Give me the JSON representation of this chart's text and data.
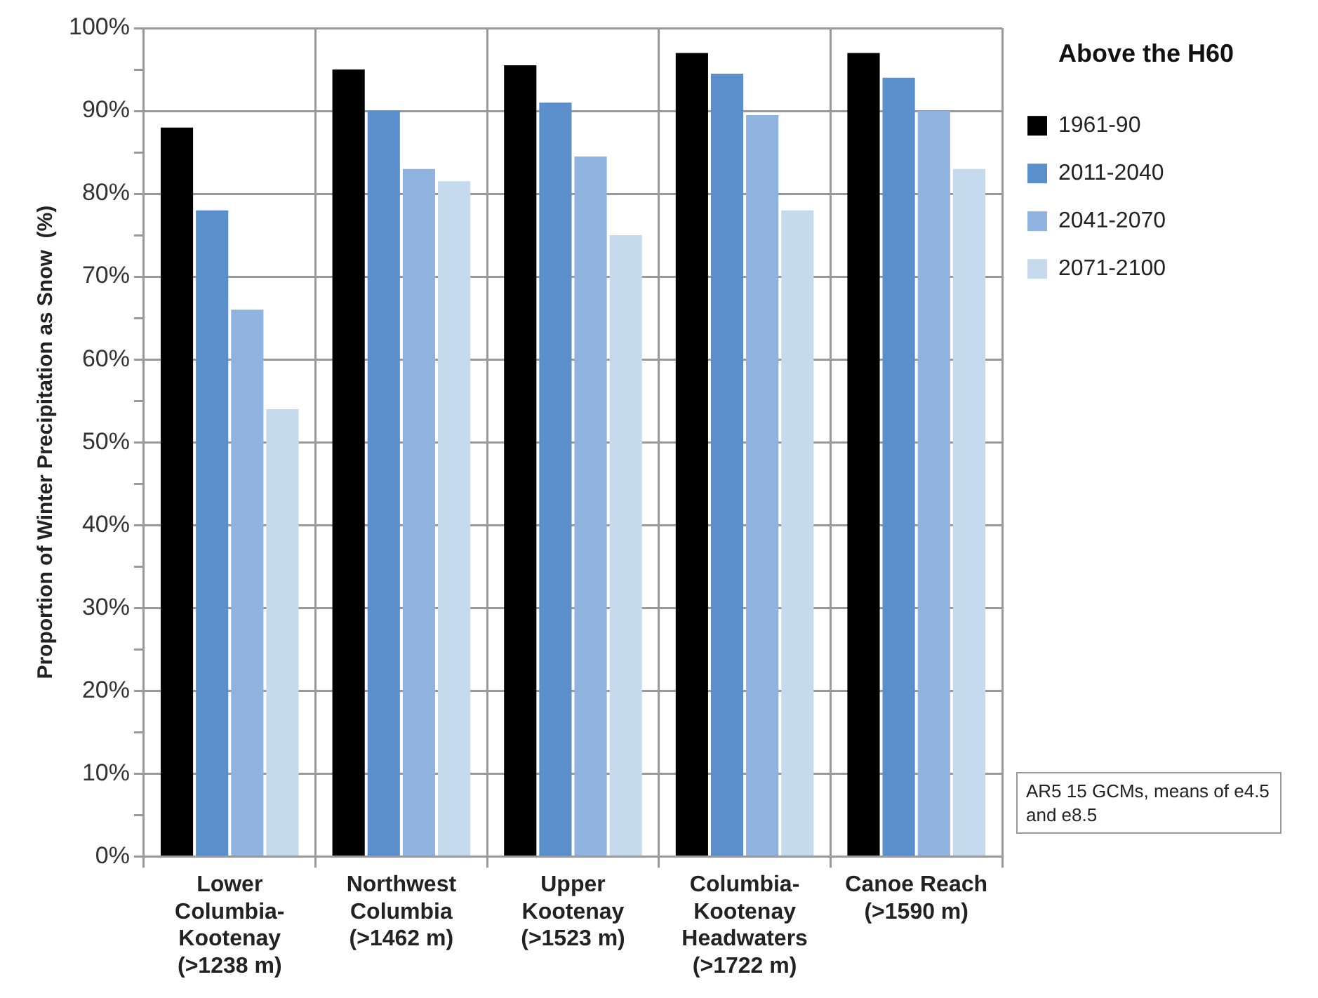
{
  "chart_data": {
    "type": "bar",
    "ylabel": "Proportion of Winter Precipitation as Snow  (%)",
    "legend_title": "Above the H60",
    "categories": [
      "Lower\nColumbia-\nKootenay\n(>1238 m)",
      "Northwest\nColumbia\n(>1462 m)",
      "Upper\nKootenay\n(>1523 m)",
      "Columbia-\nKootenay\nHeadwaters\n(>1722 m)",
      "Canoe Reach\n(>1590 m)"
    ],
    "series": [
      {
        "name": "1961-90",
        "color": "#000000",
        "values": [
          88,
          95,
          95.5,
          97,
          97
        ]
      },
      {
        "name": "2011-2040",
        "color": "#5a8fcc",
        "values": [
          78,
          90,
          91,
          94.5,
          94
        ]
      },
      {
        "name": "2041-2070",
        "color": "#8fb3de",
        "values": [
          66,
          83,
          84.5,
          89.5,
          90
        ]
      },
      {
        "name": "2071-2100",
        "color": "#c6daee",
        "values": [
          54,
          81.5,
          75,
          78,
          83
        ]
      }
    ],
    "ylim": [
      0,
      100
    ],
    "yticks": [
      {
        "value": 0,
        "label": "0%"
      },
      {
        "value": 5,
        "label": null
      },
      {
        "value": 10,
        "label": "10%"
      },
      {
        "value": 15,
        "label": null
      },
      {
        "value": 20,
        "label": "20%"
      },
      {
        "value": 25,
        "label": null
      },
      {
        "value": 30,
        "label": "30%"
      },
      {
        "value": 35,
        "label": null
      },
      {
        "value": 40,
        "label": "40%"
      },
      {
        "value": 45,
        "label": null
      },
      {
        "value": 50,
        "label": "50%"
      },
      {
        "value": 55,
        "label": null
      },
      {
        "value": 60,
        "label": "60%"
      },
      {
        "value": 65,
        "label": null
      },
      {
        "value": 70,
        "label": "70%"
      },
      {
        "value": 75,
        "label": null
      },
      {
        "value": 80,
        "label": "80%"
      },
      {
        "value": 85,
        "label": null
      },
      {
        "value": 90,
        "label": "90%"
      },
      {
        "value": 95,
        "label": null
      },
      {
        "value": 100,
        "label": "100%"
      }
    ],
    "grid": true,
    "legend": "right",
    "annotations": [
      "AR5 15 GCMs, means of e4.5 and e8.5"
    ]
  }
}
